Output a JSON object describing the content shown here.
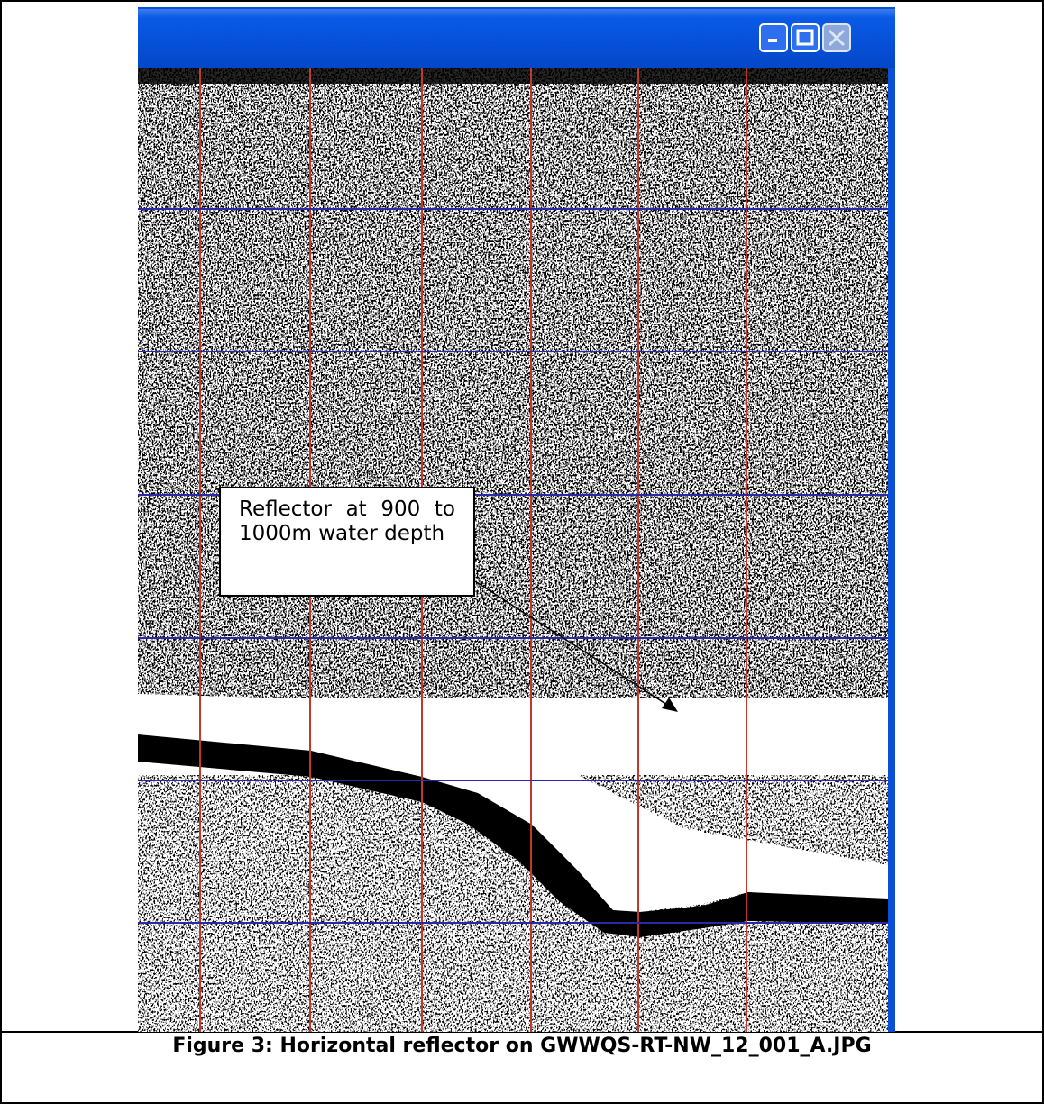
{
  "figure": {
    "annotation": "Reflector at 900 to 1000m water depth",
    "caption": "Figure 3: Horizontal reflector on GWWQS-RT-NW_12_001_A.JPG"
  }
}
